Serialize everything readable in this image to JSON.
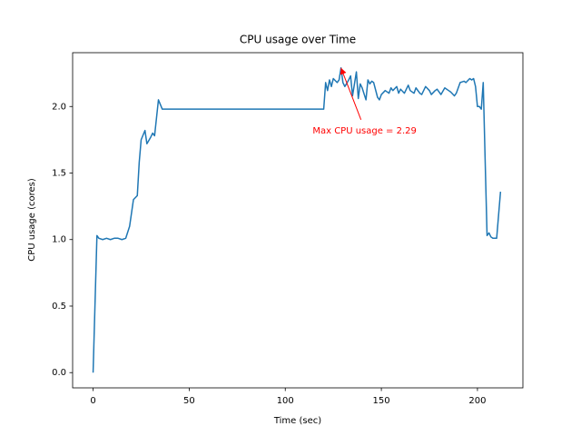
{
  "chart_data": {
    "type": "line",
    "title": "CPU usage over Time",
    "x_label": "Time (sec)",
    "y_label": "CPU usage (cores)",
    "x": [
      0,
      2,
      3,
      5,
      7,
      9,
      11,
      13,
      15,
      17,
      19,
      21,
      23,
      24,
      25,
      27,
      28,
      30,
      31,
      32,
      34,
      36,
      60,
      90,
      120,
      121,
      122,
      123,
      124,
      125,
      127,
      128,
      129,
      130,
      131,
      133,
      134,
      135,
      137,
      138,
      139,
      140,
      142,
      143,
      144,
      145,
      146,
      148,
      149,
      150,
      152,
      154,
      155,
      156,
      158,
      159,
      160,
      162,
      164,
      165,
      167,
      168,
      170,
      171,
      173,
      175,
      176,
      178,
      179,
      181,
      183,
      185,
      186,
      188,
      189,
      191,
      193,
      194,
      196,
      197,
      198,
      199,
      200,
      201,
      202,
      203,
      204,
      205,
      206,
      207,
      208,
      210,
      212
    ],
    "values": [
      0.0,
      1.03,
      1.01,
      1.0,
      1.01,
      1.0,
      1.01,
      1.01,
      1.0,
      1.01,
      1.1,
      1.3,
      1.33,
      1.58,
      1.75,
      1.82,
      1.72,
      1.77,
      1.8,
      1.78,
      2.05,
      1.98,
      1.98,
      1.98,
      1.98,
      2.18,
      2.12,
      2.2,
      2.15,
      2.21,
      2.18,
      2.2,
      2.29,
      2.18,
      2.15,
      2.2,
      2.23,
      2.08,
      2.26,
      2.06,
      2.17,
      2.14,
      2.05,
      2.2,
      2.17,
      2.19,
      2.18,
      2.07,
      2.05,
      2.09,
      2.12,
      2.1,
      2.14,
      2.12,
      2.15,
      2.1,
      2.13,
      2.1,
      2.16,
      2.12,
      2.1,
      2.14,
      2.1,
      2.09,
      2.15,
      2.12,
      2.09,
      2.12,
      2.13,
      2.09,
      2.14,
      2.12,
      2.11,
      2.08,
      2.1,
      2.18,
      2.19,
      2.18,
      2.21,
      2.2,
      2.21,
      2.15,
      2.0,
      2.0,
      1.98,
      2.18,
      1.6,
      1.03,
      1.05,
      1.02,
      1.01,
      1.01,
      1.36
    ],
    "color": "#1f77b4",
    "xlim": [
      -10.65,
      223.65
    ],
    "ylim": [
      -0.1145,
      2.4045
    ],
    "xticks": [
      0,
      50,
      100,
      150,
      200
    ],
    "yticks": [
      {
        "value": 0,
        "label": "0.0"
      },
      0.5,
      {
        "value": 1,
        "label": "1.0"
      },
      1.5,
      {
        "value": 2,
        "label": "2.0"
      }
    ],
    "grid": false,
    "annotation": {
      "text": "Max CPU usage = 2.29",
      "x": 129,
      "y": 2.29,
      "color": "#ff0000"
    }
  }
}
